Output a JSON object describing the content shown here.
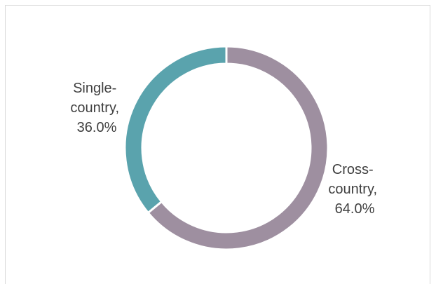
{
  "chart_data": {
    "type": "pie",
    "variant": "donut",
    "title": "",
    "slices": [
      {
        "label_lines": [
          "Cross-",
          "country,",
          "64.0%"
        ],
        "category": "Cross-country",
        "value": 64.0,
        "color": "#9e8fa0"
      },
      {
        "label_lines": [
          "Single-",
          "country,",
          "36.0%"
        ],
        "category": "Single-country",
        "value": 36.0,
        "color": "#5aa3ad"
      }
    ],
    "start_angle_deg": 0,
    "direction": "clockwise",
    "legend": "none",
    "data_labels": "outside"
  }
}
